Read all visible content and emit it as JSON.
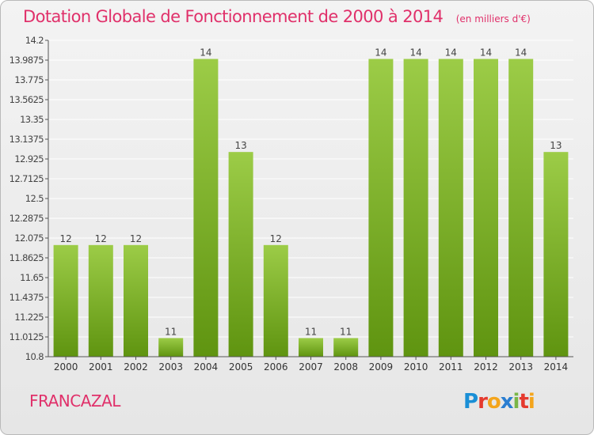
{
  "header": {
    "title": "Dotation Globale de Fonctionnement de 2000 à 2014",
    "unit": "(en milliers d'€)"
  },
  "footer": {
    "commune": "FRANCAZAL",
    "logo_text": "Proxiti"
  },
  "colors": {
    "accent": "#e0306a",
    "bar_light": "#9ccc47",
    "bar_dark": "#5f9410",
    "grid": "#ffffff",
    "axis": "#555555"
  },
  "chart_data": {
    "type": "bar",
    "title": "Dotation Globale de Fonctionnement de 2000 à 2014",
    "subtitle": "(en milliers d'€)",
    "categories": [
      "2000",
      "2001",
      "2002",
      "2003",
      "2004",
      "2005",
      "2006",
      "2007",
      "2008",
      "2009",
      "2010",
      "2011",
      "2012",
      "2013",
      "2014"
    ],
    "values": [
      12,
      12,
      12,
      11,
      14,
      13,
      12,
      11,
      11,
      14,
      14,
      14,
      14,
      14,
      13
    ],
    "data_labels": [
      "12",
      "12",
      "12",
      "11",
      "14",
      "13",
      "12",
      "11",
      "11",
      "14",
      "14",
      "14",
      "14",
      "14",
      "13"
    ],
    "ylim": [
      10.8,
      14.2
    ],
    "yticks": [
      10.8,
      11.0125,
      11.225,
      11.4375,
      11.65,
      11.8625,
      12.075,
      12.2875,
      12.5,
      12.7125,
      12.925,
      13.1375,
      13.35,
      13.5625,
      13.775,
      13.9875,
      14.2
    ],
    "ytick_labels": [
      "10.8",
      "11.0125",
      "11.225",
      "11.4375",
      "11.65",
      "11.8625",
      "12.075",
      "12.2875",
      "12.5",
      "12.7125",
      "12.925",
      "13.1375",
      "13.35",
      "13.5625",
      "13.775",
      "13.9875",
      "14.2"
    ],
    "grid": true,
    "legend": "none"
  }
}
